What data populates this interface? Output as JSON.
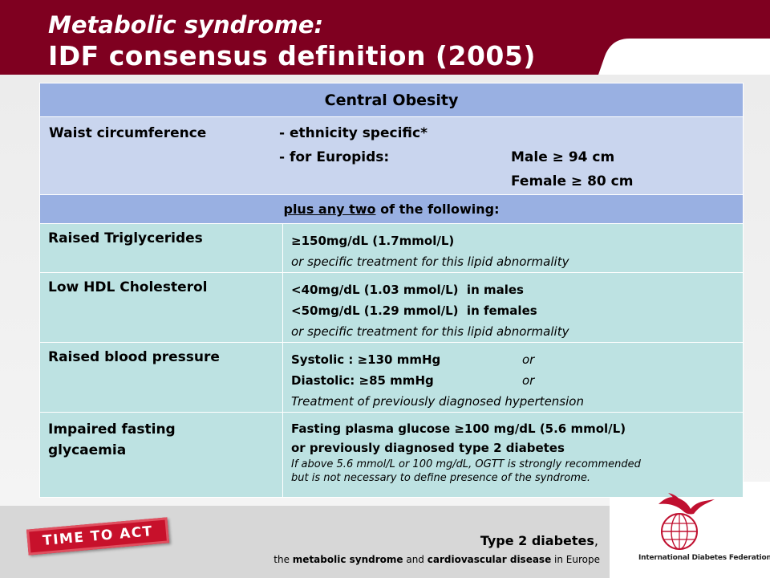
{
  "header": {
    "title_line1": "Metabolic syndrome:",
    "title_line2": "IDF consensus definition (2005)"
  },
  "table": {
    "central_header": "Central Obesity",
    "waist": {
      "label": "Waist circumference",
      "ethnicity": "- ethnicity specific*",
      "europids": "- for Europids:",
      "male": "Male ≥ 94 cm",
      "female": "Female ≥ 80 cm"
    },
    "plus": {
      "underlined": "plus any two",
      "rest": " of the following:"
    },
    "rows": [
      {
        "label": "Raised Triglycerides",
        "line1": "≥150mg/dL (1.7mmol/L)",
        "line2": "or specific treatment for this lipid abnormality"
      },
      {
        "label": "Low HDL Cholesterol",
        "line1": "<40mg/dL (1.03 mmol/L)  in males",
        "line2": "<50mg/dL (1.29 mmol/L)  in females",
        "line3": "or specific treatment for this lipid abnormality"
      },
      {
        "label": "Raised blood pressure",
        "systolic": "Systolic : ≥130 mmHg",
        "diastolic": "Diastolic: ≥85 mmHg",
        "or": "or",
        "line3": "Treatment of previously diagnosed hypertension"
      },
      {
        "label_line1": "Impaired fasting",
        "label_line2": "glycaemia",
        "line1": "Fasting plasma glucose ≥100 mg/dL (5.6 mmol/L)",
        "line2": "or previously diagnosed type 2 diabetes",
        "note1": "If above 5.6 mmol/L or 100 mg/dL, OGTT is strongly recommended",
        "note2": "but is not necessary to define presence of the syndrome."
      }
    ]
  },
  "footer": {
    "stamp": "TIME TO ACT",
    "line1_bold": "Type 2 diabetes",
    "line1_rest": ",",
    "line2": {
      "pre": "the ",
      "b1": "metabolic syndrome",
      "mid": " and ",
      "b2": "cardiovascular disease",
      "post": " in Europe"
    },
    "org": "International Diabetes Federation"
  },
  "colors": {
    "header_red": "#7f0020",
    "central_blue": "#99b0e2",
    "waist_blue": "#c9d5ee",
    "criteria_teal": "#bde2e2",
    "stamp_red": "#c7112b"
  }
}
